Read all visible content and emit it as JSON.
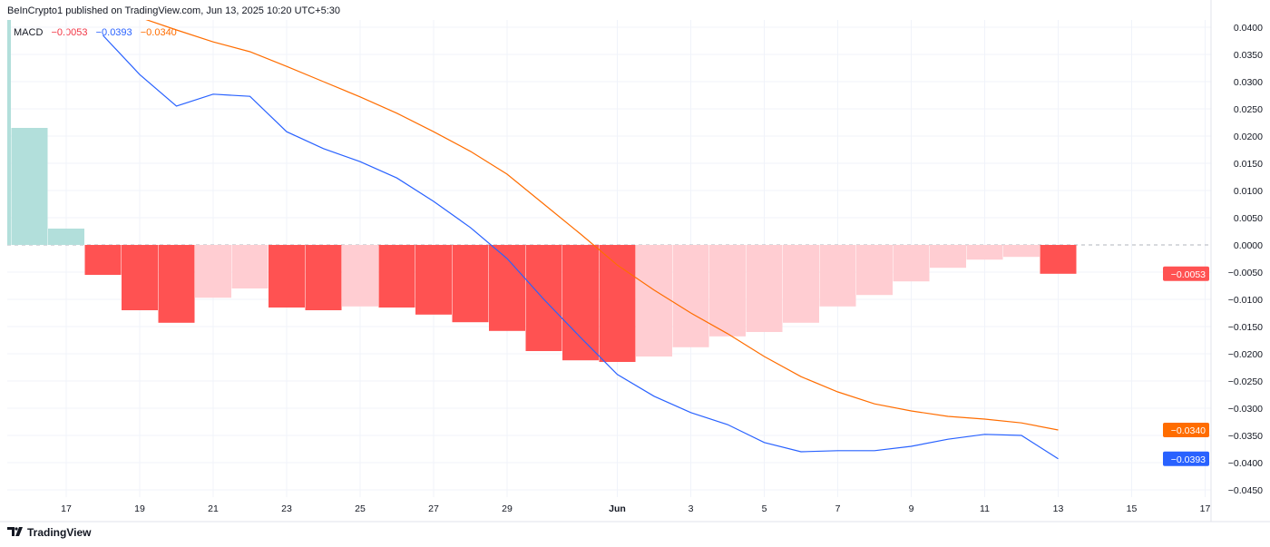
{
  "header": {
    "publisher": "BeInCrypto1 published on TradingView.com, Jun 13, 2025 10:20 UTC+5:30"
  },
  "footer": {
    "logo_text": "TradingView"
  },
  "colors": {
    "macd": "#2962FF",
    "signal": "#FF6D00",
    "hist_pos_fall": "#B2DFDB",
    "hist_neg_fall": "#FF5252",
    "hist_neg_rise": "#FFCDD2",
    "macd_tag": "#FF5252"
  },
  "chart_data": {
    "type": "bar+line",
    "title": "MACD",
    "legend_values": {
      "histogram": "−0.0053",
      "macd": "−0.0393",
      "signal": "−0.0340"
    },
    "ylim": [
      -0.0475,
      0.0415
    ],
    "y_ticks": [
      "0.0400",
      "0.0350",
      "0.0300",
      "0.0250",
      "0.0200",
      "0.0150",
      "0.0100",
      "0.0050",
      "0.0000",
      "−0.0050",
      "−0.0100",
      "−0.0150",
      "−0.0200",
      "−0.0250",
      "−0.0300",
      "−0.0350",
      "−0.0400",
      "−0.0450"
    ],
    "x_ticks": [
      {
        "date": "2025-05-17",
        "label": "17"
      },
      {
        "date": "2025-05-19",
        "label": "19"
      },
      {
        "date": "2025-05-21",
        "label": "21"
      },
      {
        "date": "2025-05-23",
        "label": "23"
      },
      {
        "date": "2025-05-25",
        "label": "25"
      },
      {
        "date": "2025-05-27",
        "label": "27"
      },
      {
        "date": "2025-05-29",
        "label": "29"
      },
      {
        "date": "2025-06-01",
        "label": "Jun"
      },
      {
        "date": "2025-06-03",
        "label": "3"
      },
      {
        "date": "2025-06-05",
        "label": "5"
      },
      {
        "date": "2025-06-07",
        "label": "7"
      },
      {
        "date": "2025-06-09",
        "label": "9"
      },
      {
        "date": "2025-06-11",
        "label": "11"
      },
      {
        "date": "2025-06-13",
        "label": "13"
      },
      {
        "date": "2025-06-15",
        "label": "15"
      },
      {
        "date": "2025-06-17",
        "label": "17"
      }
    ],
    "histogram": {
      "dates": [
        "2025-05-15",
        "2025-05-16",
        "2025-05-17",
        "2025-05-18",
        "2025-05-19",
        "2025-05-20",
        "2025-05-21",
        "2025-05-22",
        "2025-05-23",
        "2025-05-24",
        "2025-05-25",
        "2025-05-26",
        "2025-05-27",
        "2025-05-28",
        "2025-05-29",
        "2025-05-30",
        "2025-05-31",
        "2025-06-01",
        "2025-06-02",
        "2025-06-03",
        "2025-06-04",
        "2025-06-05",
        "2025-06-06",
        "2025-06-07",
        "2025-06-08",
        "2025-06-09",
        "2025-06-10",
        "2025-06-11",
        "2025-06-12",
        "2025-06-13"
      ],
      "values": [
        0.045,
        0.0215,
        0.003,
        -0.0055,
        -0.012,
        -0.0143,
        -0.0097,
        -0.008,
        -0.0115,
        -0.012,
        -0.0113,
        -0.0115,
        -0.0128,
        -0.0142,
        -0.0158,
        -0.0195,
        -0.0212,
        -0.0215,
        -0.0205,
        -0.0188,
        -0.0168,
        -0.016,
        -0.0143,
        -0.0113,
        -0.0092,
        -0.0067,
        -0.0042,
        -0.0027,
        -0.0022,
        -0.0053
      ]
    },
    "series": [
      {
        "key": "macd",
        "dates": [
          "2025-05-18",
          "2025-05-19",
          "2025-05-20",
          "2025-05-21",
          "2025-05-22",
          "2025-05-23",
          "2025-05-24",
          "2025-05-25",
          "2025-05-26",
          "2025-05-27",
          "2025-05-28",
          "2025-05-29",
          "2025-05-30",
          "2025-05-31",
          "2025-06-01",
          "2025-06-02",
          "2025-06-03",
          "2025-06-04",
          "2025-06-05",
          "2025-06-06",
          "2025-06-07",
          "2025-06-08",
          "2025-06-09",
          "2025-06-10",
          "2025-06-11",
          "2025-06-12",
          "2025-06-13"
        ],
        "values": [
          0.0385,
          0.0313,
          0.0255,
          0.0277,
          0.0273,
          0.0208,
          0.0177,
          0.0153,
          0.0123,
          0.008,
          0.0032,
          -0.0025,
          -0.01,
          -0.017,
          -0.0238,
          -0.0278,
          -0.0308,
          -0.033,
          -0.0363,
          -0.038,
          -0.0378,
          -0.0378,
          -0.037,
          -0.0357,
          -0.0348,
          -0.035,
          -0.0393
        ]
      },
      {
        "key": "signal",
        "dates": [
          "2025-05-18",
          "2025-05-19",
          "2025-05-20",
          "2025-05-21",
          "2025-05-22",
          "2025-05-23",
          "2025-05-24",
          "2025-05-25",
          "2025-05-26",
          "2025-05-27",
          "2025-05-28",
          "2025-05-29",
          "2025-05-30",
          "2025-05-31",
          "2025-06-01",
          "2025-06-02",
          "2025-06-03",
          "2025-06-04",
          "2025-06-05",
          "2025-06-06",
          "2025-06-07",
          "2025-06-08",
          "2025-06-09",
          "2025-06-10",
          "2025-06-11",
          "2025-06-12",
          "2025-06-13"
        ],
        "values": [
          0.044,
          0.0418,
          0.0395,
          0.0373,
          0.0355,
          0.0328,
          0.03,
          0.0272,
          0.0242,
          0.0208,
          0.0172,
          0.013,
          0.0075,
          0.002,
          -0.0037,
          -0.0083,
          -0.0125,
          -0.0163,
          -0.0205,
          -0.0242,
          -0.027,
          -0.0292,
          -0.0305,
          -0.0315,
          -0.032,
          -0.0327,
          -0.034
        ]
      }
    ],
    "price_tags": [
      {
        "key": "hist",
        "label": "−0.0053",
        "value": -0.0053,
        "color": "#FF5252"
      },
      {
        "key": "signal",
        "label": "−0.0340",
        "value": -0.034,
        "color": "#FF6D00"
      },
      {
        "key": "macd",
        "label": "−0.0393",
        "value": -0.0393,
        "color": "#2962FF"
      }
    ],
    "grid": true
  }
}
